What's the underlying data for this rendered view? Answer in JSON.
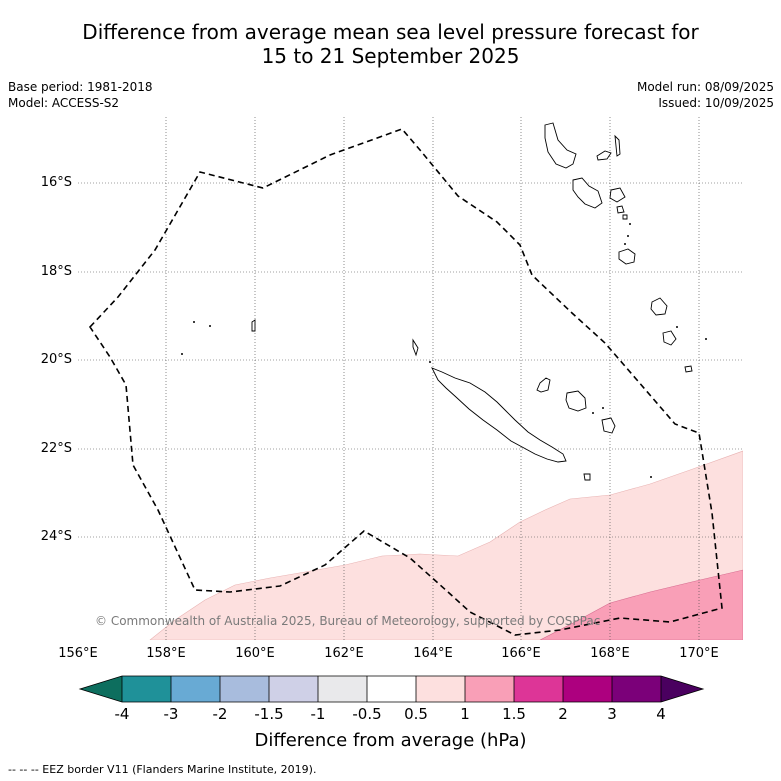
{
  "title_line1": "Difference from average mean sea level pressure forecast for",
  "title_line2": "15 to 21 September 2025",
  "base_period": "Base period: 1981-2018",
  "model": "Model: ACCESS-S2",
  "model_run": "Model run: 08/09/2025",
  "issued": "Issued: 10/09/2025",
  "copyright": "© Commonwealth of Australia 2025, Bureau of Meteorology, supported by COSPPac",
  "lat_labels": [
    "16°S",
    "18°S",
    "20°S",
    "22°S",
    "24°S"
  ],
  "lon_labels": [
    "156°E",
    "158°E",
    "160°E",
    "162°E",
    "164°E",
    "166°E",
    "168°E",
    "170°E"
  ],
  "colorbar": {
    "title": "Difference from average (hPa)",
    "labels": [
      "-4",
      "-3",
      "-2",
      "-1.5",
      "-1",
      "-0.5",
      "0.5",
      "1",
      "1.5",
      "2",
      "3",
      "4"
    ],
    "colors": [
      "#0d6e5e",
      "#1f9199",
      "#68aad4",
      "#a8bcdd",
      "#cfd0e7",
      "#e9e9eb",
      "#ffffff",
      "#fde0df",
      "#f99fb7",
      "#dd3597",
      "#ad007f",
      "#7b0079",
      "#4a005f"
    ]
  },
  "footnote": "--  --  -- EEZ border V11 (Flanders Marine Institute, 2019).",
  "map": {
    "region": "New Caledonia",
    "lon_range": [
      156,
      171
    ],
    "lat_range": [
      -26.2,
      -14.5
    ],
    "anomaly_areas": [
      {
        "class": "0.5 to 1 hPa",
        "color": "#fde0df"
      },
      {
        "class": "1 to 1.5 hPa",
        "color": "#f99fb7"
      }
    ],
    "eez_border_color": "#000000",
    "grid": true
  }
}
